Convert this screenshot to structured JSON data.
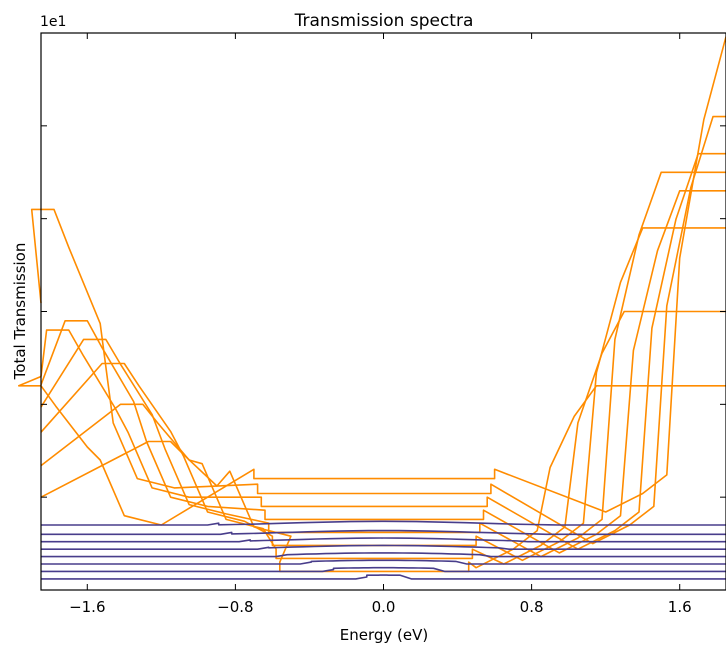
{
  "chart_data": {
    "type": "line",
    "title": "Transmission spectra",
    "xlabel": "Energy (eV)",
    "ylabel": "Total Transmission",
    "y_offset_label": "1e1",
    "xlim": [
      -1.85,
      1.85
    ],
    "ylim": [
      0,
      3.0
    ],
    "x_ticks": [
      {
        "value": -1.6,
        "label": "−1.6"
      },
      {
        "value": -0.8,
        "label": "−0.8"
      },
      {
        "value": 0.0,
        "label": "0.0"
      },
      {
        "value": 0.8,
        "label": "0.8"
      },
      {
        "value": 1.6,
        "label": "1.6"
      }
    ],
    "y_ticks": [
      0,
      0.5,
      1.0,
      1.5,
      2.0,
      2.5,
      3.0
    ],
    "grid": false,
    "legend": "none",
    "colors": {
      "orange": "#ff8c00",
      "purple": "#483d8b"
    },
    "series": [
      {
        "color": "#ff8c00",
        "step": 0.6,
        "left_edge": -1.85,
        "right_edge": 1.85,
        "left_peak": 1.1,
        "left_level": 0.4,
        "right_level": 0.42,
        "right_peak": 2.98
      },
      {
        "color": "#ff8c00",
        "step": 0.52,
        "left_edge": -1.78,
        "right_edge": 1.78,
        "left_peak": 2.05,
        "left_level": 0.6,
        "right_level": 0.25,
        "right_peak": 2.55
      },
      {
        "color": "#ff8c00",
        "step": 0.45,
        "left_edge": -1.7,
        "right_edge": 1.7,
        "left_peak": 1.4,
        "left_level": 0.55,
        "right_level": 0.22,
        "right_peak": 2.35
      },
      {
        "color": "#ff8c00",
        "step": 0.38,
        "left_edge": -1.6,
        "right_edge": 1.6,
        "left_peak": 1.45,
        "left_level": 0.5,
        "right_level": 0.2,
        "right_peak": 2.15
      },
      {
        "color": "#ff8c00",
        "step": 0.31,
        "left_edge": -1.5,
        "right_edge": 1.5,
        "left_peak": 1.35,
        "left_level": 0.46,
        "right_level": 0.18,
        "right_peak": 2.25
      },
      {
        "color": "#ff8c00",
        "step": 0.24,
        "left_edge": -1.4,
        "right_edge": 1.4,
        "left_peak": 1.22,
        "left_level": 0.42,
        "right_level": 0.16,
        "right_peak": 1.95
      },
      {
        "color": "#ff8c00",
        "step": 0.17,
        "left_edge": -1.3,
        "right_edge": 1.3,
        "left_peak": 1.0,
        "left_level": 0.38,
        "right_level": 0.14,
        "right_peak": 1.5
      },
      {
        "color": "#ff8c00",
        "step": 0.1,
        "left_edge": -1.15,
        "right_edge": 1.15,
        "left_peak": 0.8,
        "left_level": 0.34,
        "right_level": 0.12,
        "right_peak": 1.1
      },
      {
        "color": "#483d8b",
        "step": 0.35,
        "left_edge": -0.95,
        "right_edge": 0.95,
        "plateau": 0.36
      },
      {
        "color": "#483d8b",
        "step": 0.3,
        "left_edge": -0.88,
        "right_edge": 0.88,
        "plateau": 0.31
      },
      {
        "color": "#483d8b",
        "step": 0.26,
        "left_edge": -0.78,
        "right_edge": 0.78,
        "plateau": 0.27
      },
      {
        "color": "#483d8b",
        "step": 0.22,
        "left_edge": -0.68,
        "right_edge": 0.68,
        "plateau": 0.23
      },
      {
        "color": "#483d8b",
        "step": 0.18,
        "left_edge": -0.58,
        "right_edge": 0.58,
        "plateau": 0.19
      },
      {
        "color": "#483d8b",
        "step": 0.14,
        "left_edge": -0.45,
        "right_edge": 0.45,
        "plateau": 0.15
      },
      {
        "color": "#483d8b",
        "step": 0.1,
        "left_edge": -0.33,
        "right_edge": 0.33,
        "plateau": 0.11
      },
      {
        "color": "#483d8b",
        "step": 0.06,
        "left_edge": -0.15,
        "right_edge": 0.15,
        "plateau": 0.07
      }
    ]
  }
}
